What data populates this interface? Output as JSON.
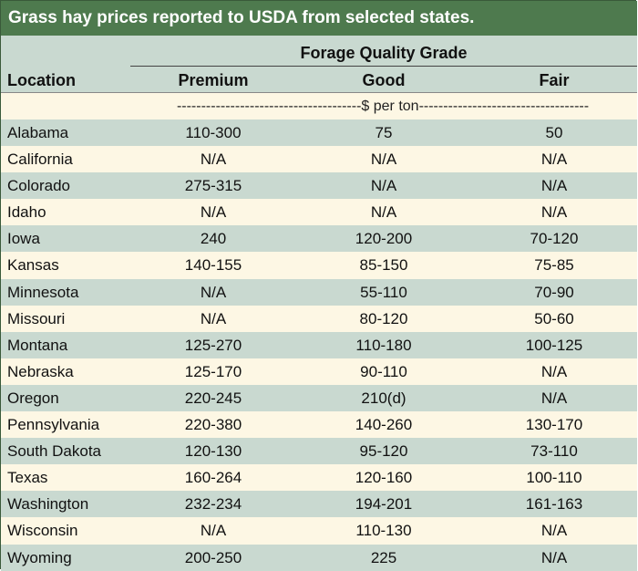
{
  "title": "Grass hay prices reported to USDA from selected states.",
  "group_header": "Forage Quality Grade",
  "columns": {
    "location": "Location",
    "premium": "Premium",
    "good": "Good",
    "fair": "Fair"
  },
  "unit_row": "--------------------------------------$ per ton-----------------------------------",
  "rows": [
    {
      "location": "Alabama",
      "premium": "110-300",
      "good": "75",
      "fair": "50"
    },
    {
      "location": "California",
      "premium": "N/A",
      "good": "N/A",
      "fair": "N/A"
    },
    {
      "location": "Colorado",
      "premium": "275-315",
      "good": "N/A",
      "fair": "N/A"
    },
    {
      "location": "Idaho",
      "premium": "N/A",
      "good": "N/A",
      "fair": "N/A"
    },
    {
      "location": "Iowa",
      "premium": "240",
      "good": "120-200",
      "fair": "70-120"
    },
    {
      "location": "Kansas",
      "premium": "140-155",
      "good": "85-150",
      "fair": "75-85"
    },
    {
      "location": "Minnesota",
      "premium": "N/A",
      "good": "55-110",
      "fair": "70-90"
    },
    {
      "location": "Missouri",
      "premium": "N/A",
      "good": "80-120",
      "fair": "50-60"
    },
    {
      "location": "Montana",
      "premium": "125-270",
      "good": "110-180",
      "fair": "100-125"
    },
    {
      "location": "Nebraska",
      "premium": "125-170",
      "good": "90-110",
      "fair": "N/A"
    },
    {
      "location": "Oregon",
      "premium": "220-245",
      "good": "210(d)",
      "fair": "N/A"
    },
    {
      "location": "Pennsylvania",
      "premium": "220-380",
      "good": "140-260",
      "fair": "130-170"
    },
    {
      "location": "South Dakota",
      "premium": "120-130",
      "good": "95-120",
      "fair": "73-110"
    },
    {
      "location": "Texas",
      "premium": "160-264",
      "good": "120-160",
      "fair": "100-110"
    },
    {
      "location": "Washington",
      "premium": "232-234",
      "good": "194-201",
      "fair": "161-163"
    },
    {
      "location": "Wisconsin",
      "premium": "N/A",
      "good": "110-130",
      "fair": "N/A"
    },
    {
      "location": "Wyoming",
      "premium": "200-250",
      "good": "225",
      "fair": "N/A"
    }
  ]
}
